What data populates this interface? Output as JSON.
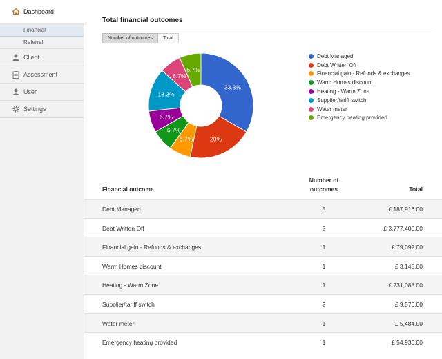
{
  "sidebar": {
    "items": [
      {
        "name": "dashboard",
        "label": "Dashboard",
        "icon": "home-icon"
      },
      {
        "name": "client",
        "label": "Client",
        "icon": "user-icon"
      },
      {
        "name": "assessment",
        "label": "Assessment",
        "icon": "clipboard-icon"
      },
      {
        "name": "user",
        "label": "User",
        "icon": "user-icon"
      },
      {
        "name": "settings",
        "label": "Settings",
        "icon": "gear-icon"
      }
    ],
    "sub_items": [
      {
        "label": "Financial",
        "selected": true
      },
      {
        "label": "Referral",
        "selected": false
      }
    ]
  },
  "main": {
    "title": "Total financial outcomes",
    "toggle": {
      "outcomes_label": "Number of outcomes",
      "total_label": "Total"
    }
  },
  "chart_data": {
    "type": "pie",
    "donut": true,
    "title": "Total financial outcomes",
    "legend_position": "right",
    "categories": [
      "Debt Managed",
      "Debt Written Off",
      "Financial gain - Refunds & exchanges",
      "Warm Homes discount",
      "Heating - Warm Zone",
      "Supplier/tariff switch",
      "Water meter",
      "Emergency heating provided"
    ],
    "values": [
      5,
      3,
      1,
      1,
      1,
      2,
      1,
      1
    ],
    "labels": [
      "33.3%",
      "20%",
      "6.7%",
      "6.7%",
      "6.7%",
      "13.3%",
      "6.7%",
      "6.7%"
    ],
    "colors": [
      "#3366cc",
      "#dc3912",
      "#ff9900",
      "#109618",
      "#990099",
      "#0099c6",
      "#dd4477",
      "#66aa00"
    ]
  },
  "table": {
    "headers": {
      "outcome": "Financial outcome",
      "count_line1": "Number of",
      "count_line2": "outcomes",
      "total": "Total"
    },
    "rows": [
      {
        "outcome": "Debt Managed",
        "count": "5",
        "total": "£ 187,916.00"
      },
      {
        "outcome": "Debt Written Off",
        "count": "3",
        "total": "£ 3,777,400.00"
      },
      {
        "outcome": "Financial gain - Refunds & exchanges",
        "count": "1",
        "total": "£ 79,092.00"
      },
      {
        "outcome": "Warm Homes discount",
        "count": "1",
        "total": "£ 3,148.00"
      },
      {
        "outcome": "Heating - Warm Zone",
        "count": "1",
        "total": "£ 231,088.00"
      },
      {
        "outcome": "Supplier/tariff switch",
        "count": "2",
        "total": "£ 9,570.00"
      },
      {
        "outcome": "Water meter",
        "count": "1",
        "total": "£ 5,484.00"
      },
      {
        "outcome": "Emergency heating provided",
        "count": "1",
        "total": "£ 54,936.00"
      }
    ]
  }
}
